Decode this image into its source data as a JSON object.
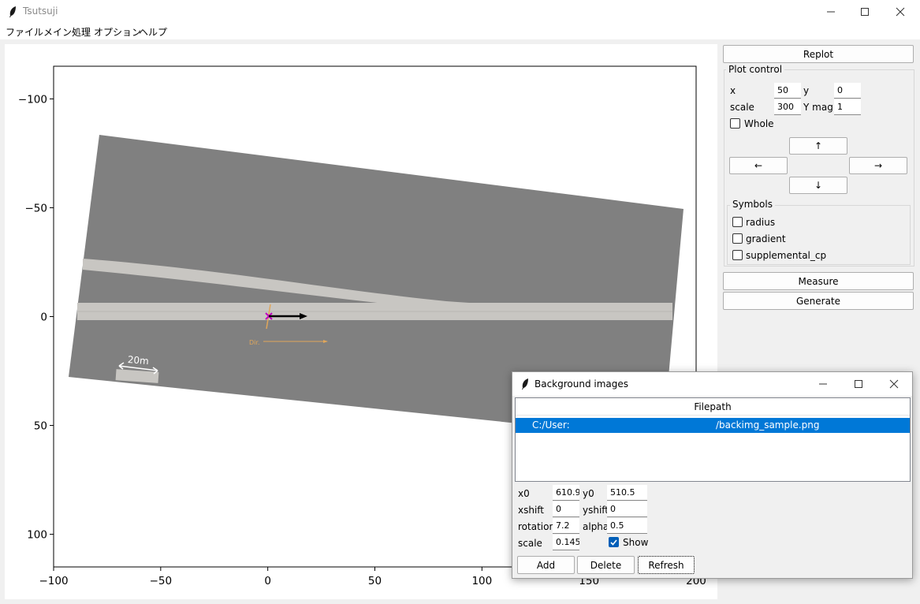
{
  "window": {
    "title": "Tsutsuji"
  },
  "menu": [
    "ファイル",
    "メイン処理",
    "オプション",
    "ヘルプ"
  ],
  "plot": {
    "xlim": [
      -100,
      200
    ],
    "ylim": [
      -115,
      115
    ],
    "x_ticks": [
      "−100",
      "−50",
      "0",
      "50",
      "100",
      "150",
      "200"
    ],
    "y_ticks": [
      "−100",
      "−50",
      "0",
      "50",
      "100"
    ],
    "image_labels": {
      "scale_bar": "20m",
      "dir": "Dir."
    }
  },
  "panel": {
    "replot": "Replot",
    "plot_control": "Plot control",
    "x_label": "x",
    "x_value": "50",
    "y_label": "y",
    "y_value": "0",
    "scale_label": "scale",
    "scale_value": "300",
    "ymag_label": "Y mag.",
    "ymag_value": "1",
    "whole": "Whole",
    "up": "↑",
    "left": "←",
    "right": "→",
    "down": "↓",
    "symbols": "Symbols",
    "radius": "radius",
    "gradient": "gradient",
    "supplemental_cp": "supplemental_cp",
    "measure": "Measure",
    "generate": "Generate"
  },
  "dialog": {
    "title": "Background images",
    "column": "Filepath",
    "row_a": "C:/User:",
    "row_b": "/backimg_sample.png",
    "x0_label": "x0",
    "x0": "610.9",
    "y0_label": "y0",
    "y0": "510.5",
    "xshift_label": "xshift",
    "xshift": "0",
    "yshift_label": "yshift",
    "yshift": "0",
    "rotation_label": "rotation",
    "rotation": "7.2",
    "alpha_label": "alpha",
    "alpha": "0.5",
    "scale_label": "scale",
    "scale": "0.145",
    "show": "Show",
    "add": "Add",
    "delete": "Delete",
    "refresh": "Refresh"
  }
}
